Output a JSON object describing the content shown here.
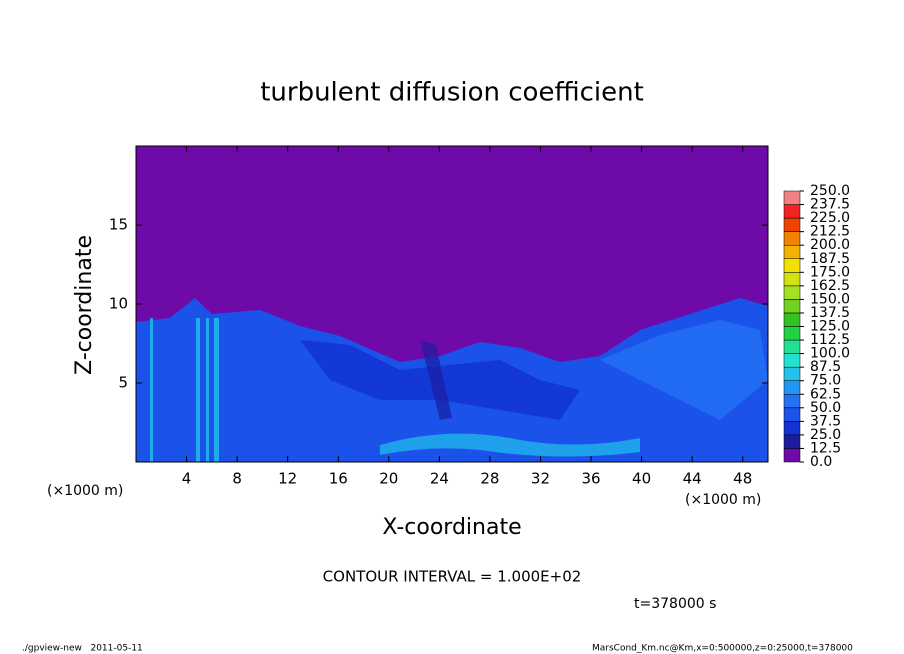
{
  "chart_data": {
    "type": "contour",
    "title": "turbulent diffusion coefficient",
    "x_label": "X-coordinate",
    "y_label": "Z-coordinate",
    "axis_unit": "(×1000 m)",
    "xlim": [
      0,
      50
    ],
    "xticks": [
      4,
      8,
      12,
      16,
      20,
      24,
      28,
      32,
      36,
      40,
      44,
      48
    ],
    "ylim": [
      0,
      20
    ],
    "yticks": [
      5,
      10,
      15
    ],
    "levels": [
      {
        "value": 0,
        "label": "0.0"
      },
      12.5,
      {
        "value": 25,
        "label": "25.0"
      },
      37.5,
      {
        "value": 50,
        "label": "50.0"
      },
      62.5,
      {
        "value": 75,
        "label": "75.0"
      },
      87.5,
      {
        "value": 100,
        "label": "100.0"
      },
      112.5,
      {
        "value": 125,
        "label": "125.0"
      },
      137.5,
      {
        "value": 150,
        "label": "150.0"
      },
      162.5,
      {
        "value": 175,
        "label": "175.0"
      },
      187.5,
      {
        "value": 200,
        "label": "200.0"
      },
      212.5,
      {
        "value": 225,
        "label": "225.0"
      },
      237.5,
      {
        "value": 250,
        "label": "250.0"
      }
    ],
    "colors": [
      "#6e0aa8",
      "#1c1ca0",
      "#1232d2",
      "#1a52ea",
      "#2272f2",
      "#2294f2",
      "#22c2ea",
      "#22e2d2",
      "#22e292",
      "#22d242",
      "#32c222",
      "#72d222",
      "#a2e222",
      "#d2e212",
      "#f2e202",
      "#f2b202",
      "#f28202",
      "#f24202",
      "#f22222",
      "#f28282"
    ],
    "contour_interval": "CONTOUR INTERVAL = 1.000E+02",
    "time_label": "t=378000 s",
    "footer_left": "./gpview-new   2011-05-11",
    "footer_right": "MarsCond_Km.nc@Km,x=0:500000,z=0:25000,t=378000"
  }
}
